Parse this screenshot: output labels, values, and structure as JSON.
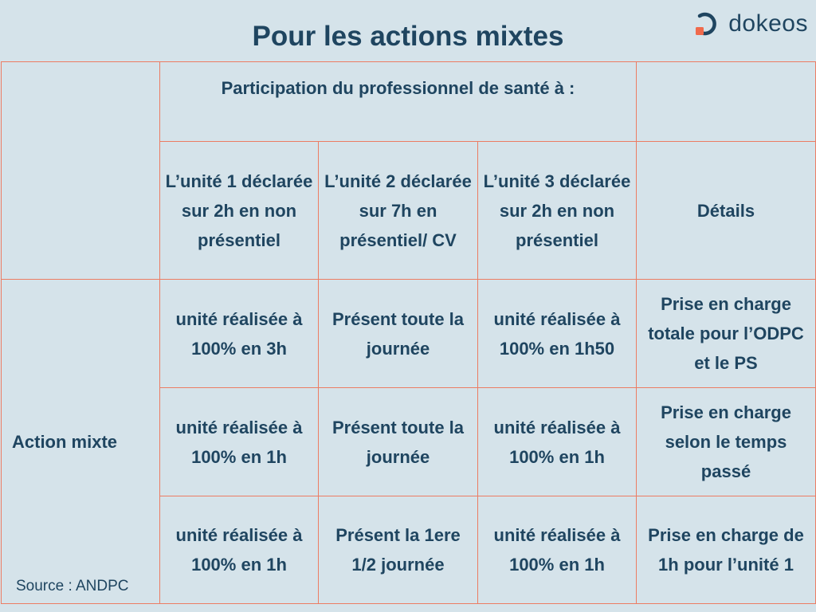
{
  "title": "Pour les actions mixtes",
  "logo": {
    "text": "dokeos",
    "icon": "dokeos-logo-icon",
    "accent": "#f06a4c",
    "primary": "#1f4560"
  },
  "colors": {
    "background": "#d5e3ea",
    "grid": "#ec7c63",
    "text": "#1f4560"
  },
  "table": {
    "header_group": "Participation du professionnel de santé à :",
    "columns": [
      "L’unité 1 déclarée sur 2h en non présentiel",
      "L’unité 2 déclarée sur 7h en présentiel/ CV",
      "L’unité 3 déclarée sur 2h en non présentiel",
      "Détails"
    ],
    "row_label": "Action mixte",
    "source": "Source : ANDPC",
    "rows": [
      [
        "unité réalisée à 100% en 3h",
        "Présent toute la journée",
        "unité réalisée à 100% en 1h50",
        "Prise en charge totale  pour l’ODPC et le PS"
      ],
      [
        "unité réalisée à 100% en 1h",
        "Présent toute la journée",
        "unité réalisée à 100% en 1h",
        "Prise en charge selon le temps passé"
      ],
      [
        "unité réalisée à 100% en 1h",
        "Présent la 1ere 1/2 journée",
        "unité réalisée à 100% en 1h",
        "Prise en charge de 1h pour l’unité 1"
      ]
    ]
  }
}
